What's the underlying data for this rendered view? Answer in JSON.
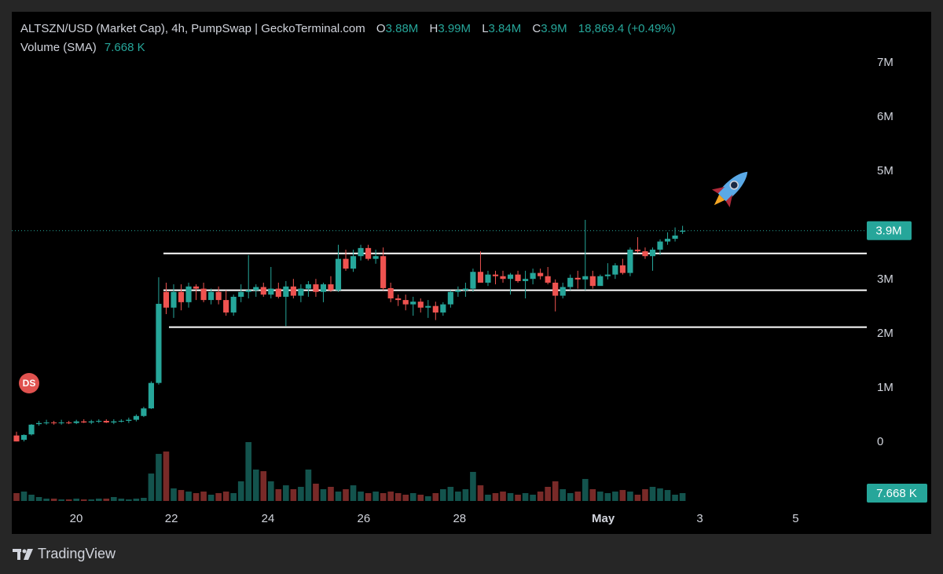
{
  "header": {
    "title": "ALTSZN/USD (Market Cap), 4h, PumpSwap | GeckoTerminal.com",
    "ohlc": [
      {
        "key": "O",
        "value": "3.88M"
      },
      {
        "key": "H",
        "value": "3.99M"
      },
      {
        "key": "L",
        "value": "3.84M"
      },
      {
        "key": "C",
        "value": "3.9M"
      }
    ],
    "change": "18,869.4 (+0.49%)",
    "volume_label": "Volume (SMA)",
    "volume_value": "7.668 K"
  },
  "badge": "DS",
  "footer": "TradingView",
  "chart_data": {
    "type": "candlestick",
    "open": [
      0.12,
      0.04,
      0.14,
      0.33,
      0.35,
      0.36,
      0.35,
      0.36,
      0.35,
      0.38,
      0.36,
      0.38,
      0.39,
      0.36,
      0.38,
      0.39,
      0.41,
      0.48,
      0.62,
      1.09,
      2.77,
      2.48,
      2.77,
      2.58,
      2.87,
      2.83,
      2.62,
      2.77,
      2.62,
      2.39,
      2.68,
      2.77,
      2.8,
      2.86,
      2.72,
      2.83,
      2.68,
      2.87,
      2.7,
      2.83,
      2.91,
      2.77,
      2.91,
      2.8,
      3.38,
      3.2,
      3.43,
      3.58,
      3.38,
      3.43,
      2.84,
      2.65,
      2.62,
      2.54,
      2.59,
      2.48,
      2.51,
      2.39,
      2.54,
      2.77,
      2.8,
      2.83,
      3.14,
      2.94,
      3.09,
      3.06,
      3.01,
      3.09,
      2.97,
      3.01,
      3.12,
      3.06,
      2.94,
      2.7,
      2.86,
      3.03,
      3.0,
      3.06,
      2.88,
      3.06,
      3.09,
      3.26,
      3.12,
      3.55,
      3.52,
      3.43,
      3.55,
      3.7,
      3.75,
      3.88
    ],
    "high": [
      0.19,
      0.14,
      0.33,
      0.39,
      0.41,
      0.39,
      0.41,
      0.39,
      0.41,
      0.42,
      0.41,
      0.42,
      0.42,
      0.42,
      0.42,
      0.45,
      0.51,
      0.65,
      1.12,
      3.04,
      2.94,
      2.91,
      2.91,
      2.94,
      2.91,
      2.94,
      2.83,
      2.87,
      2.8,
      2.72,
      2.91,
      3.45,
      2.91,
      2.94,
      3.23,
      2.94,
      2.97,
      3.01,
      2.91,
      2.97,
      3.01,
      2.94,
      3.06,
      3.64,
      3.55,
      3.55,
      3.64,
      3.64,
      3.55,
      3.59,
      2.94,
      2.72,
      2.72,
      2.68,
      2.65,
      2.62,
      2.59,
      2.58,
      2.8,
      2.87,
      2.94,
      3.2,
      3.52,
      3.16,
      3.16,
      3.16,
      3.12,
      3.16,
      3.16,
      3.2,
      3.2,
      3.23,
      3.0,
      2.94,
      3.09,
      3.16,
      4.1,
      3.16,
      3.09,
      3.3,
      3.3,
      3.38,
      3.59,
      3.78,
      3.59,
      3.59,
      3.74,
      3.87,
      3.96,
      3.99
    ],
    "low": [
      0.01,
      0.01,
      0.12,
      0.3,
      0.32,
      0.32,
      0.32,
      0.33,
      0.33,
      0.35,
      0.33,
      0.35,
      0.35,
      0.33,
      0.36,
      0.35,
      0.38,
      0.46,
      0.61,
      1.06,
      2.36,
      2.29,
      2.43,
      2.48,
      2.62,
      2.58,
      2.54,
      2.54,
      2.33,
      2.33,
      2.58,
      2.65,
      2.68,
      2.68,
      2.65,
      2.65,
      2.14,
      2.65,
      2.58,
      2.68,
      2.68,
      2.58,
      2.77,
      2.77,
      3.16,
      3.14,
      3.35,
      3.35,
      3.29,
      2.8,
      2.58,
      2.51,
      2.43,
      2.33,
      2.39,
      2.29,
      2.25,
      2.33,
      2.48,
      2.68,
      2.68,
      2.77,
      2.94,
      2.88,
      2.91,
      2.94,
      2.72,
      2.94,
      2.65,
      2.91,
      3.0,
      2.91,
      2.41,
      2.65,
      2.8,
      2.83,
      2.8,
      2.83,
      2.94,
      3.0,
      3.01,
      3.09,
      3.06,
      3.49,
      3.38,
      3.16,
      3.45,
      3.64,
      3.7,
      3.84
    ],
    "close": [
      0.01,
      0.13,
      0.32,
      0.35,
      0.36,
      0.35,
      0.36,
      0.35,
      0.38,
      0.36,
      0.38,
      0.39,
      0.36,
      0.38,
      0.39,
      0.41,
      0.48,
      0.62,
      1.09,
      2.55,
      2.48,
      2.77,
      2.58,
      2.87,
      2.83,
      2.62,
      2.77,
      2.62,
      2.39,
      2.68,
      2.77,
      2.8,
      2.86,
      2.72,
      2.83,
      2.68,
      2.87,
      2.7,
      2.83,
      2.91,
      2.77,
      2.91,
      2.8,
      3.38,
      3.2,
      3.43,
      3.58,
      3.38,
      3.43,
      2.84,
      2.65,
      2.62,
      2.54,
      2.59,
      2.48,
      2.51,
      2.39,
      2.54,
      2.77,
      2.8,
      2.83,
      3.14,
      2.94,
      3.09,
      3.06,
      3.01,
      3.09,
      2.97,
      3.01,
      3.12,
      3.06,
      2.94,
      2.7,
      2.86,
      3.03,
      3.0,
      3.06,
      2.88,
      3.06,
      3.09,
      3.26,
      3.12,
      3.55,
      3.52,
      3.43,
      3.55,
      3.7,
      3.75,
      3.81,
      3.9
    ],
    "volume": [
      7.67,
      9.2,
      6.14,
      3.84,
      2.3,
      2.3,
      1.53,
      1.53,
      2.3,
      1.53,
      1.53,
      2.3,
      2.3,
      3.84,
      2.3,
      1.53,
      2.3,
      3.07,
      26.8,
      46,
      48.3,
      12.3,
      10.7,
      9.2,
      7.67,
      9.2,
      6.14,
      7.67,
      9.2,
      7.67,
      19.2,
      57.5,
      30.7,
      29.1,
      19.2,
      11.5,
      15.3,
      11.5,
      13.8,
      30.7,
      16.9,
      11.5,
      13.8,
      9.2,
      11.5,
      15.3,
      9.2,
      7.67,
      9.2,
      7.67,
      9.2,
      7.67,
      6.14,
      7.67,
      6.14,
      4.6,
      7.67,
      11.5,
      13.8,
      9.2,
      11.5,
      28.4,
      15.3,
      6.14,
      7.67,
      9.2,
      7.67,
      6.14,
      7.67,
      6.14,
      9.2,
      13.8,
      19.2,
      11.5,
      7.67,
      9.2,
      21.5,
      11.5,
      9.2,
      7.67,
      9.2,
      10.7,
      9.2,
      6.14,
      11.5,
      13.8,
      12.3,
      10.7,
      6.14,
      7.668
    ],
    "up_color": "#26a69a",
    "down_color": "#ef5350",
    "ylim": [
      -1.19,
      7.94
    ],
    "yticks": [
      0,
      {
        "value": 1,
        "label": "1M"
      },
      {
        "value": 2,
        "label": "2M"
      },
      {
        "value": 3,
        "label": "3M"
      },
      {
        "value": 5,
        "label": "5M"
      },
      {
        "value": 6,
        "label": "6M"
      },
      {
        "value": 7,
        "label": "7M"
      }
    ],
    "xlim": [
      -0.63,
      113.3
    ],
    "xticks": [
      {
        "value": 7.98,
        "label": "20"
      },
      {
        "value": 20.7,
        "label": "22"
      },
      {
        "value": 33.6,
        "label": "24"
      },
      {
        "value": 46.4,
        "label": "26"
      },
      {
        "value": 59.2,
        "label": "28"
      },
      {
        "value": 78.4,
        "label": "May"
      },
      {
        "value": 91.3,
        "label": "3"
      },
      {
        "value": 104.1,
        "label": "5"
      }
    ],
    "volume_ylim": [
      0,
      477.8
    ],
    "last_price": {
      "value": 3.9,
      "label": "3.9M"
    },
    "last_volume": {
      "value": 7.668,
      "label": "7.668 K"
    },
    "hlines": [
      3.48,
      2.8,
      2.12
    ]
  }
}
